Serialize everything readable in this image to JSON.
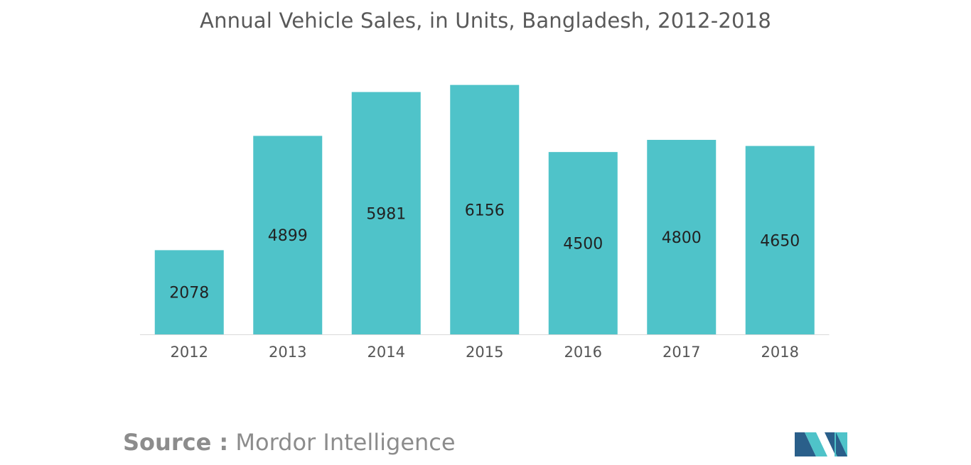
{
  "title": "Annual Vehicle Sales, in Units, Bangladesh, 2012-2018",
  "source": {
    "label": "Source :",
    "value": "Mordor Intelligence"
  },
  "logo_icon": "mordor-intelligence-logo-icon",
  "colors": {
    "bar": "#4fc3c9",
    "label": "#222222",
    "tick": "#555555",
    "axis": "#d9d9d9",
    "title": "#595959",
    "source": "#8c8c8c",
    "logo_dark": "#2a5f8a",
    "logo_light": "#4fc3c9"
  },
  "chart_data": {
    "type": "bar",
    "title": "Annual Vehicle Sales, in Units, Bangladesh, 2012-2018",
    "categories": [
      "2012",
      "2013",
      "2014",
      "2015",
      "2016",
      "2017",
      "2018"
    ],
    "values": [
      2078,
      4899,
      5981,
      6156,
      4500,
      4800,
      4650
    ],
    "xlabel": "",
    "ylabel": "",
    "ylim": [
      0,
      6500
    ],
    "grid": false,
    "legend": "none"
  }
}
